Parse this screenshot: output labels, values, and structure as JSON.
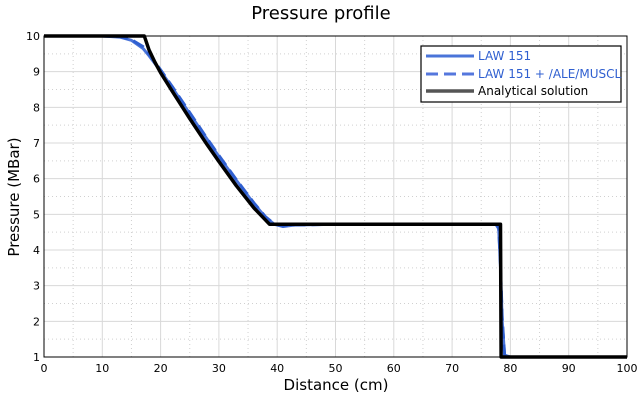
{
  "chart_data": {
    "type": "line",
    "title": "Pressure profile",
    "xlabel": "Distance (cm)",
    "ylabel": "Pressure (MBar)",
    "xlim": [
      0,
      100
    ],
    "ylim": [
      1,
      10
    ],
    "xticks": [
      "0",
      "10",
      "20",
      "30",
      "40",
      "50",
      "60",
      "70",
      "80",
      "90",
      "100"
    ],
    "yticks": [
      "1",
      "2",
      "3",
      "4",
      "5",
      "6",
      "7",
      "8",
      "9",
      "10"
    ],
    "grid": true,
    "legend_position": "top-right",
    "series": [
      {
        "name": "LAW 151",
        "color": "#4a74d9",
        "style": "solid",
        "x": [
          0,
          10,
          13,
          15,
          17,
          18,
          20,
          22,
          25,
          28,
          30,
          33,
          36,
          38,
          39.5,
          41,
          43,
          50,
          60,
          70,
          77.5,
          78,
          78.3,
          78.6,
          79,
          80,
          90,
          100
        ],
        "y": [
          10,
          10,
          9.97,
          9.88,
          9.65,
          9.45,
          9.02,
          8.55,
          7.82,
          7.1,
          6.62,
          5.95,
          5.3,
          4.92,
          4.72,
          4.66,
          4.7,
          4.72,
          4.72,
          4.72,
          4.72,
          4.6,
          3.5,
          2,
          1.05,
          1,
          1,
          1
        ]
      },
      {
        "name": "LAW 151 + /ALE/MUSCL",
        "color": "#2f5fd0",
        "style": "dashed",
        "x": [
          0,
          10,
          13,
          15,
          17,
          18,
          20,
          22,
          25,
          28,
          30,
          33,
          36,
          38,
          39.5,
          41,
          43,
          50,
          60,
          70,
          77.6,
          78,
          78.3,
          78.6,
          79,
          80,
          90,
          100
        ],
        "y": [
          10,
          10,
          9.98,
          9.9,
          9.7,
          9.5,
          9.05,
          8.58,
          7.85,
          7.12,
          6.65,
          5.97,
          5.32,
          4.93,
          4.73,
          4.67,
          4.7,
          4.72,
          4.72,
          4.72,
          4.72,
          4.62,
          3.6,
          2.1,
          1.05,
          1,
          1,
          1
        ]
      },
      {
        "name": "Analytical solution",
        "color": "#000000",
        "style": "solid",
        "x": [
          0,
          17.2,
          18,
          19,
          20,
          22,
          25,
          28,
          30,
          33,
          36,
          38.7,
          40,
          50,
          60,
          70,
          78.3,
          78.4,
          100
        ],
        "y": [
          10,
          10,
          9.62,
          9.27,
          8.97,
          8.45,
          7.68,
          6.95,
          6.48,
          5.8,
          5.18,
          4.72,
          4.72,
          4.72,
          4.72,
          4.72,
          4.72,
          1,
          1
        ]
      }
    ]
  }
}
